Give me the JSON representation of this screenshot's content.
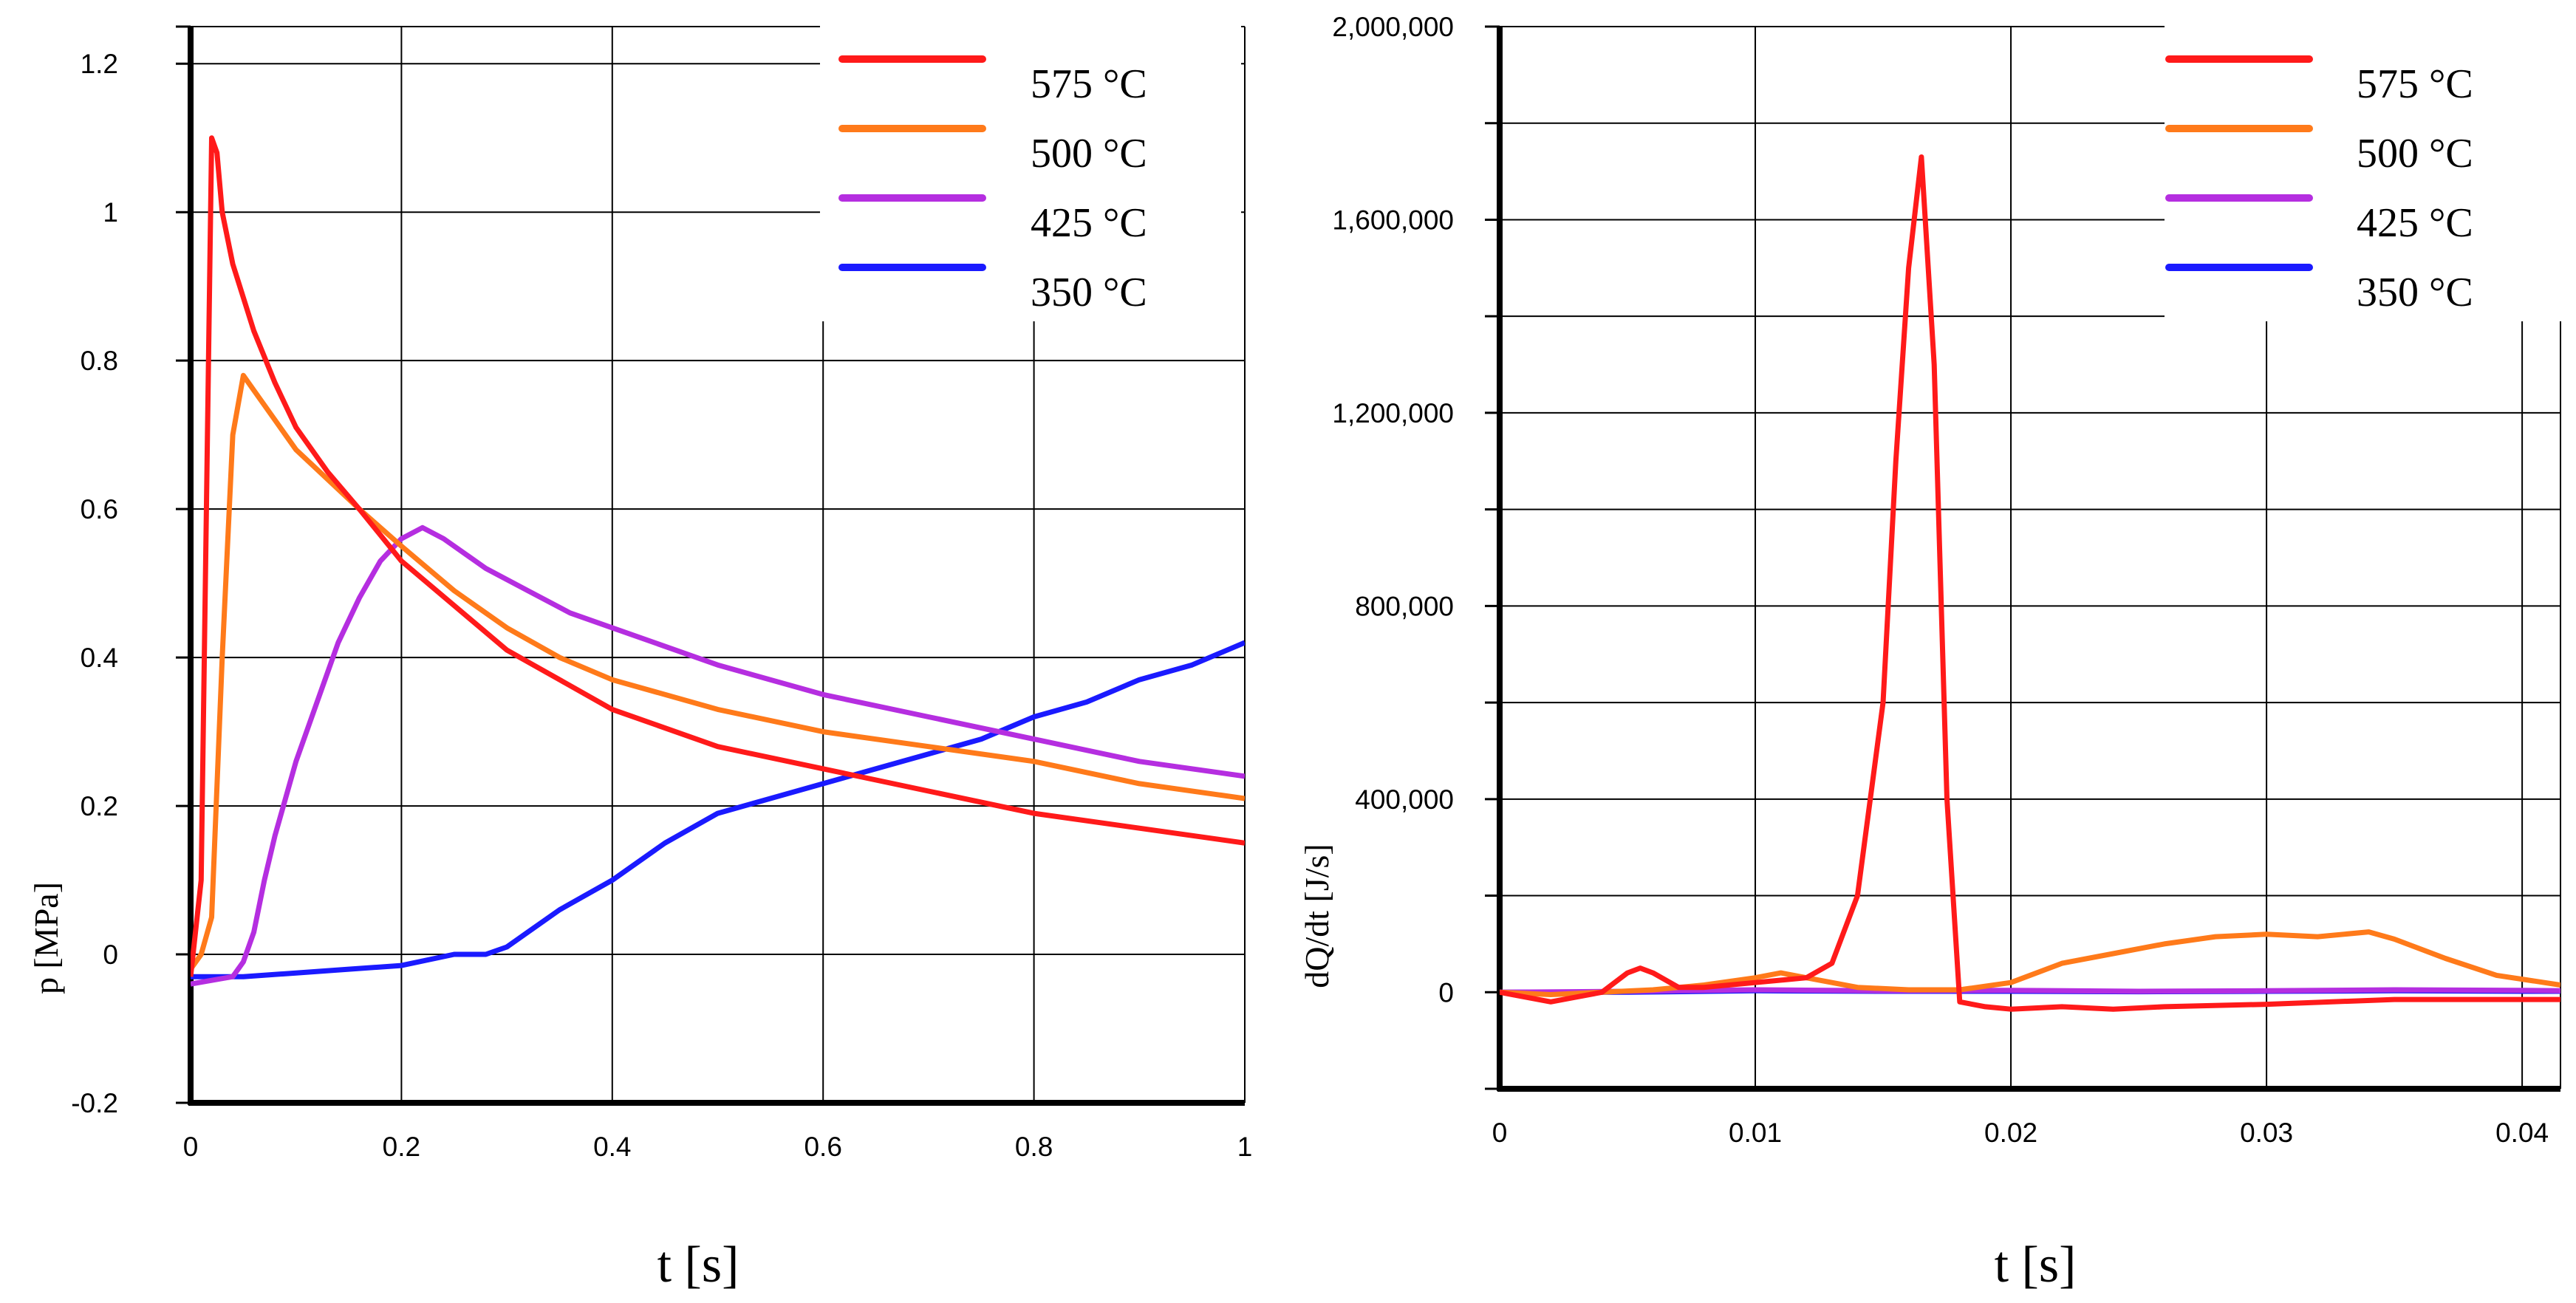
{
  "figure": {
    "panels_description": "Two side-by-side line charts"
  },
  "chart_data": [
    {
      "type": "line",
      "title": "",
      "xlabel": "t [s]",
      "ylabel": "p [MPa]",
      "xlim": [
        0,
        1
      ],
      "ylim": [
        -0.2,
        1.25
      ],
      "x_ticks": [
        0,
        0.2,
        0.4,
        0.6,
        0.8,
        1
      ],
      "x_tick_labels": [
        "0",
        "0.2",
        "0.4",
        "0.6",
        "0.8",
        "1"
      ],
      "y_ticks": [
        -0.2,
        0,
        0.2,
        0.4,
        0.6,
        0.8,
        1,
        1.2
      ],
      "y_tick_labels": [
        "-0.2",
        "0",
        "0.2",
        "0.4",
        "0.6",
        "0.8",
        "1",
        "1.2"
      ],
      "grid": true,
      "legend_position": "top-right",
      "series": [
        {
          "name": "575 °C",
          "color": "#ff1a1a",
          "x": [
            0,
            0.01,
            0.015,
            0.02,
            0.025,
            0.03,
            0.04,
            0.06,
            0.08,
            0.1,
            0.13,
            0.16,
            0.2,
            0.25,
            0.3,
            0.35,
            0.4,
            0.5,
            0.6,
            0.7,
            0.8,
            0.9,
            1.0
          ],
          "y": [
            -0.03,
            0.1,
            0.6,
            1.1,
            1.08,
            1.0,
            0.93,
            0.84,
            0.77,
            0.71,
            0.65,
            0.6,
            0.53,
            0.47,
            0.41,
            0.37,
            0.33,
            0.28,
            0.25,
            0.22,
            0.19,
            0.17,
            0.15
          ]
        },
        {
          "name": "500 °C",
          "color": "#ff7a1a",
          "x": [
            0,
            0.01,
            0.02,
            0.03,
            0.04,
            0.05,
            0.06,
            0.08,
            0.1,
            0.13,
            0.16,
            0.2,
            0.25,
            0.3,
            0.35,
            0.4,
            0.5,
            0.6,
            0.7,
            0.8,
            0.9,
            1.0
          ],
          "y": [
            -0.02,
            0.0,
            0.05,
            0.4,
            0.7,
            0.78,
            0.76,
            0.72,
            0.68,
            0.64,
            0.6,
            0.55,
            0.49,
            0.44,
            0.4,
            0.37,
            0.33,
            0.3,
            0.28,
            0.26,
            0.23,
            0.21
          ]
        },
        {
          "name": "425 °C",
          "color": "#b52ee0",
          "x": [
            0,
            0.02,
            0.04,
            0.05,
            0.06,
            0.07,
            0.08,
            0.1,
            0.12,
            0.14,
            0.16,
            0.18,
            0.2,
            0.22,
            0.24,
            0.28,
            0.32,
            0.36,
            0.4,
            0.5,
            0.6,
            0.7,
            0.8,
            0.9,
            1.0
          ],
          "y": [
            -0.04,
            -0.035,
            -0.03,
            -0.01,
            0.03,
            0.1,
            0.16,
            0.26,
            0.34,
            0.42,
            0.48,
            0.53,
            0.56,
            0.575,
            0.56,
            0.52,
            0.49,
            0.46,
            0.44,
            0.39,
            0.35,
            0.32,
            0.29,
            0.26,
            0.24
          ]
        },
        {
          "name": "350 °C",
          "color": "#1a1aff",
          "x": [
            0,
            0.05,
            0.1,
            0.15,
            0.2,
            0.25,
            0.28,
            0.3,
            0.32,
            0.35,
            0.4,
            0.45,
            0.5,
            0.55,
            0.6,
            0.65,
            0.7,
            0.75,
            0.8,
            0.85,
            0.9,
            0.95,
            1.0
          ],
          "y": [
            -0.03,
            -0.03,
            -0.025,
            -0.02,
            -0.015,
            0.0,
            0.0,
            0.01,
            0.03,
            0.06,
            0.1,
            0.15,
            0.19,
            0.21,
            0.23,
            0.25,
            0.27,
            0.29,
            0.32,
            0.34,
            0.37,
            0.39,
            0.42
          ]
        }
      ]
    },
    {
      "type": "line",
      "title": "",
      "xlabel": "t [s]",
      "ylabel": "dQ/dt [J/s]",
      "xlim": [
        0,
        0.0415
      ],
      "ylim": [
        -200000,
        2000000
      ],
      "x_ticks": [
        0,
        0.01,
        0.02,
        0.03,
        0.04
      ],
      "x_tick_labels": [
        "0",
        "0.01",
        "0.02",
        "0.03",
        "0.04"
      ],
      "y_ticks": [
        0,
        400000,
        800000,
        1200000,
        1600000,
        2000000
      ],
      "y_tick_labels": [
        "0",
        "400,000",
        "800,000",
        "1,200,000",
        "1,600,000",
        "2,000,000"
      ],
      "y_grid_step": 200000,
      "grid": true,
      "legend_position": "top-right",
      "series": [
        {
          "name": "575 °C",
          "color": "#ff1a1a",
          "x": [
            0,
            0.001,
            0.002,
            0.003,
            0.004,
            0.005,
            0.0055,
            0.006,
            0.007,
            0.008,
            0.01,
            0.012,
            0.013,
            0.014,
            0.015,
            0.0155,
            0.016,
            0.0165,
            0.017,
            0.0175,
            0.018,
            0.019,
            0.02,
            0.022,
            0.024,
            0.026,
            0.03,
            0.035,
            0.04,
            0.0415
          ],
          "y": [
            0,
            -10000,
            -20000,
            -10000,
            0,
            40000,
            50000,
            40000,
            10000,
            10000,
            20000,
            30000,
            60000,
            200000,
            600000,
            1100000,
            1500000,
            1730000,
            1300000,
            400000,
            -20000,
            -30000,
            -35000,
            -30000,
            -35000,
            -30000,
            -25000,
            -15000,
            -15000,
            -15000
          ]
        },
        {
          "name": "500 °C",
          "color": "#ff7a1a",
          "x": [
            0,
            0.002,
            0.004,
            0.006,
            0.008,
            0.01,
            0.011,
            0.012,
            0.014,
            0.016,
            0.018,
            0.02,
            0.022,
            0.024,
            0.026,
            0.028,
            0.03,
            0.032,
            0.034,
            0.035,
            0.037,
            0.039,
            0.0415
          ],
          "y": [
            0,
            -5000,
            0,
            5000,
            15000,
            30000,
            40000,
            30000,
            10000,
            5000,
            5000,
            20000,
            60000,
            80000,
            100000,
            115000,
            120000,
            115000,
            125000,
            110000,
            70000,
            35000,
            15000
          ]
        },
        {
          "name": "425 °C",
          "color": "#b52ee0",
          "x": [
            0,
            0.005,
            0.01,
            0.015,
            0.02,
            0.025,
            0.03,
            0.035,
            0.04,
            0.0415
          ],
          "y": [
            0,
            2000,
            5000,
            3000,
            4000,
            2000,
            3000,
            5000,
            4000,
            3000
          ]
        },
        {
          "name": "350 °C",
          "color": "#1a1aff",
          "x": [
            0,
            0.005,
            0.01,
            0.015,
            0.02,
            0.025,
            0.03,
            0.035,
            0.04,
            0.0415
          ],
          "y": [
            0,
            0,
            3000,
            2000,
            2000,
            1000,
            2000,
            3000,
            2000,
            2000
          ]
        }
      ]
    }
  ]
}
